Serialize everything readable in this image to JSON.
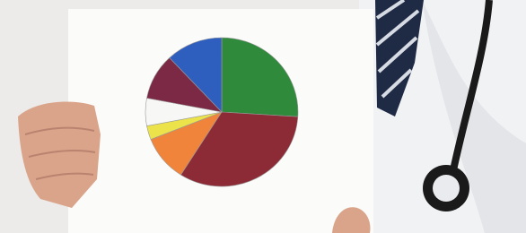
{
  "chart_data": {
    "type": "pie",
    "values": [
      26,
      33,
      10,
      3,
      6,
      10,
      12
    ],
    "colors": [
      "#2f8a3c",
      "#8c2a36",
      "#f0843a",
      "#ece24a",
      "#f7f7f5",
      "#7b2944",
      "#2f5fbe"
    ]
  }
}
